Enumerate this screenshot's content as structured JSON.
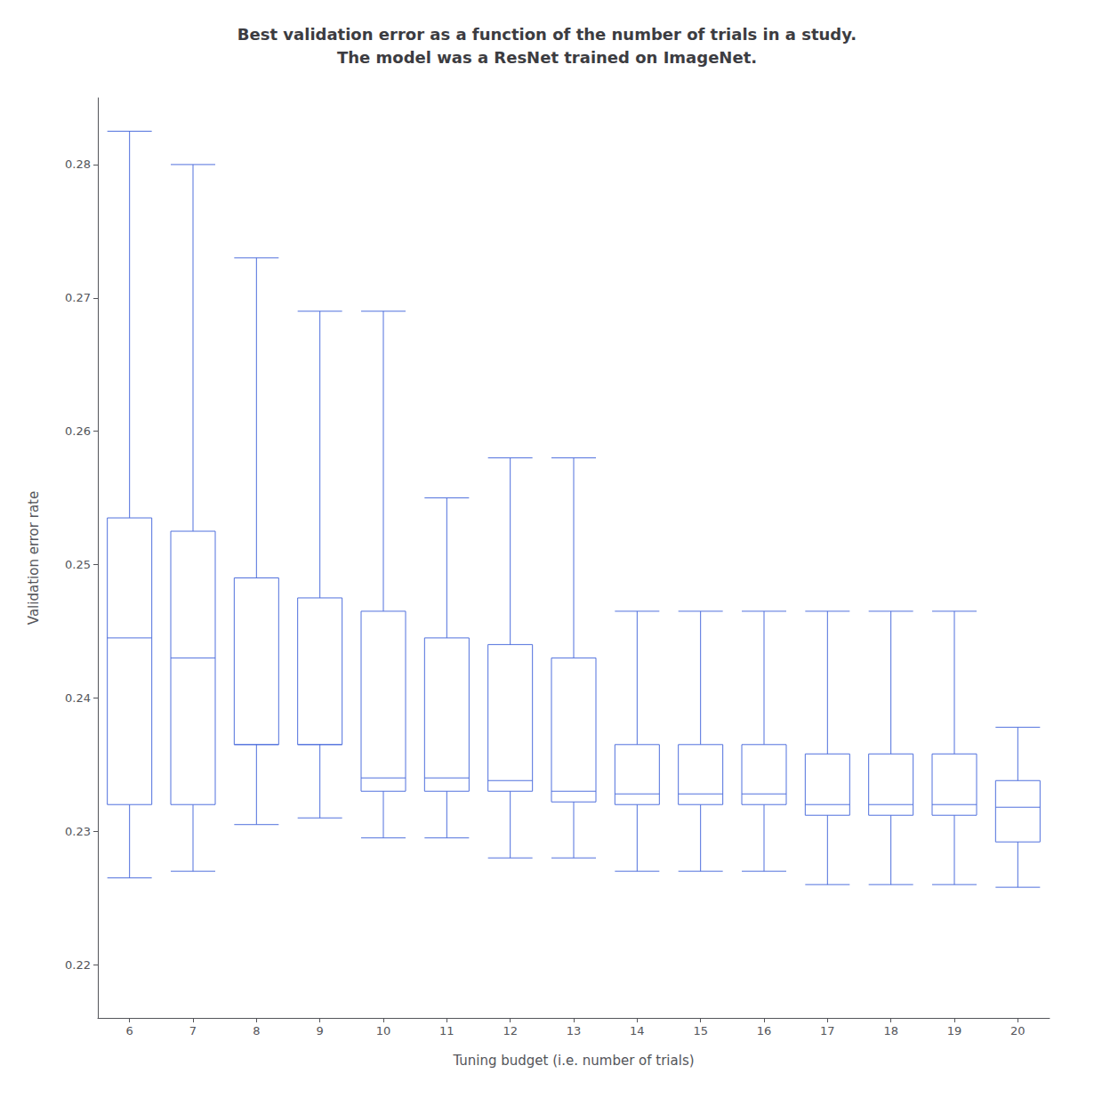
{
  "chart_data": {
    "type": "box",
    "title": "Best validation error as a function of the number of trials in a study.\nThe model was a ResNet trained on ImageNet.",
    "xlabel": "Tuning budget (i.e. number of trials)",
    "ylabel": "Validation error rate",
    "categories": [
      "6",
      "7",
      "8",
      "9",
      "10",
      "11",
      "12",
      "13",
      "14",
      "15",
      "16",
      "17",
      "18",
      "19",
      "20"
    ],
    "values": [
      [
        0.2265,
        0.232,
        0.2445,
        0.2535,
        0.2825
      ],
      [
        0.227,
        0.232,
        0.243,
        0.2525,
        0.28
      ],
      [
        0.2305,
        0.2365,
        0.2365,
        0.249,
        0.273
      ],
      [
        0.231,
        0.2365,
        0.2365,
        0.2475,
        0.269
      ],
      [
        0.2295,
        0.233,
        0.234,
        0.2465,
        0.269
      ],
      [
        0.2295,
        0.233,
        0.234,
        0.2445,
        0.255
      ],
      [
        0.228,
        0.233,
        0.2338,
        0.244,
        0.258
      ],
      [
        0.228,
        0.2322,
        0.233,
        0.243,
        0.258
      ],
      [
        0.227,
        0.232,
        0.2328,
        0.2365,
        0.2465
      ],
      [
        0.227,
        0.232,
        0.2328,
        0.2365,
        0.2465
      ],
      [
        0.227,
        0.232,
        0.2328,
        0.2365,
        0.2465
      ],
      [
        0.226,
        0.2312,
        0.232,
        0.2358,
        0.2465
      ],
      [
        0.226,
        0.2312,
        0.232,
        0.2358,
        0.2465
      ],
      [
        0.226,
        0.2312,
        0.232,
        0.2358,
        0.2465
      ],
      [
        0.2258,
        0.2292,
        0.2318,
        0.2338,
        0.2378
      ]
    ],
    "ylim": [
      0.216,
      0.285
    ],
    "yticks": [
      0.22,
      0.23,
      0.24,
      0.25,
      0.26,
      0.27,
      0.28
    ],
    "grid": false
  }
}
